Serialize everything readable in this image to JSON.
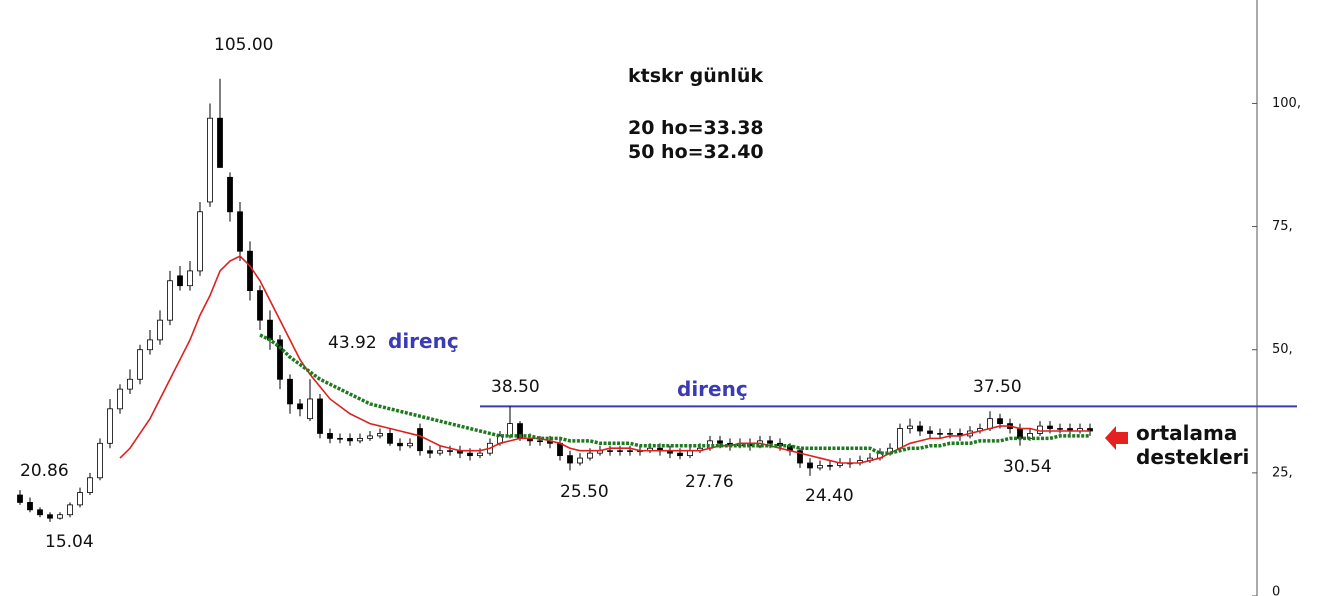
{
  "chart_data": {
    "type": "candlestick",
    "title": "ktskr günlük",
    "notes": [
      "20 ho=33.38",
      "50 ho=32.40"
    ],
    "open": [
      20.5,
      19,
      17.5,
      16.5,
      15.8,
      16.5,
      18.5,
      21,
      24,
      31,
      38,
      42,
      44,
      50,
      52,
      56,
      65,
      63,
      66,
      80,
      97,
      85,
      78,
      70,
      62,
      56,
      52,
      44,
      39,
      36,
      40,
      33,
      32,
      32,
      31.5,
      32,
      32.5,
      33,
      31,
      30.5,
      34,
      29.5,
      29,
      29.5,
      29.5,
      29,
      28.5,
      29,
      31,
      32.5,
      35,
      32,
      31.5,
      31.5,
      31,
      28.5,
      27,
      28,
      29,
      29.5,
      29.5,
      29.5,
      29.5,
      29.5,
      30,
      29.5,
      29,
      28.5,
      29.5,
      30,
      31.5,
      31,
      30.5,
      31,
      30.5,
      31.5,
      31,
      30.5,
      29.5,
      27,
      26,
      26.5,
      26.5,
      27,
      27,
      27.5,
      28,
      29,
      30,
      34,
      34.5,
      33.5,
      33,
      33,
      33,
      32.5,
      33.5,
      34,
      36,
      35,
      34,
      32,
      33,
      34.5,
      34,
      34,
      33.5,
      34
    ],
    "high": [
      21.5,
      20,
      18,
      17,
      17,
      19,
      22,
      25,
      32,
      40,
      43,
      46,
      51,
      54,
      58,
      66,
      67,
      68,
      80,
      100,
      105,
      86,
      80,
      72,
      63,
      58,
      53,
      45,
      40,
      44,
      41,
      34,
      33,
      33,
      33,
      33.5,
      34,
      34,
      32,
      32,
      35,
      30.5,
      30.5,
      30.5,
      30.5,
      30,
      30,
      32,
      33.5,
      38.5,
      35.5,
      33,
      32.5,
      32.5,
      32,
      29.5,
      29,
      30,
      30.5,
      30.5,
      30.5,
      30.5,
      30.5,
      31,
      31,
      30.5,
      30,
      30.5,
      31,
      32.5,
      32.5,
      32,
      32,
      32,
      32.5,
      32.5,
      32,
      31,
      30,
      28,
      27.5,
      27.5,
      28,
      28,
      28.5,
      29,
      30,
      31,
      35,
      36,
      35.5,
      34.5,
      34,
      34,
      34,
      34.5,
      35,
      37.5,
      37,
      36,
      35,
      34,
      35.5,
      35.5,
      35,
      35,
      35,
      35
    ],
    "low": [
      18.5,
      17,
      16,
      15.04,
      15.5,
      16,
      18,
      20.5,
      23.5,
      30,
      37,
      41,
      43,
      49,
      51,
      55,
      62,
      62,
      65,
      79,
      87,
      76,
      68,
      60,
      54,
      50,
      42,
      37,
      36.5,
      35.5,
      32,
      31,
      31,
      30.5,
      31,
      31.5,
      32,
      30.5,
      29.5,
      30,
      28.5,
      28,
      28.5,
      28.5,
      28,
      27.5,
      28,
      28.5,
      30.5,
      32,
      31.5,
      30.5,
      30.5,
      30,
      27.5,
      25.5,
      26.5,
      27.5,
      28.5,
      28.5,
      28.5,
      28.5,
      28.5,
      29,
      28.5,
      28,
      27.76,
      28,
      29,
      29.5,
      30,
      29.5,
      30,
      29.5,
      30,
      30,
      29.5,
      28.5,
      26,
      24.4,
      25.5,
      25.5,
      26,
      26,
      26.5,
      27,
      27.5,
      28.5,
      29.5,
      33,
      32.5,
      32,
      32,
      32,
      31.5,
      32,
      33,
      33.5,
      34,
      33,
      30.54,
      31.5,
      32.5,
      33,
      33,
      32.5,
      33,
      32.5
    ],
    "close": [
      19,
      17.5,
      16.5,
      15.8,
      16.5,
      18.5,
      21,
      24,
      31,
      38,
      42,
      44,
      50,
      52,
      56,
      64,
      63,
      66,
      78,
      97,
      87,
      78,
      70,
      62,
      56,
      52,
      44,
      39,
      38,
      40,
      33,
      32,
      32,
      31.5,
      32,
      32.5,
      33,
      31,
      30.5,
      31,
      29.5,
      29,
      29.5,
      29.5,
      29,
      28.5,
      29,
      31,
      32.5,
      35,
      32,
      31.5,
      31.5,
      31,
      28.5,
      27,
      28,
      29,
      29.5,
      29.5,
      29.5,
      29.5,
      29.5,
      30,
      29.5,
      29,
      28.5,
      29.5,
      30,
      31.5,
      31,
      30.5,
      31,
      30.5,
      31.5,
      31,
      30.5,
      29.5,
      27,
      26,
      26.5,
      26.5,
      27,
      27,
      27.5,
      28,
      29,
      30,
      34,
      34.5,
      33.5,
      33,
      33,
      33,
      32.5,
      33.5,
      34,
      36,
      35,
      34,
      32,
      33,
      34.5,
      34,
      34,
      33.5,
      34,
      33.5
    ],
    "moving_averages": [
      {
        "color": "#e02020",
        "style": "solid",
        "values": [
          null,
          null,
          null,
          null,
          null,
          null,
          null,
          null,
          null,
          null,
          28,
          30,
          33,
          36,
          40,
          44,
          48,
          52,
          57,
          61,
          66,
          68,
          69,
          67,
          64,
          60,
          56,
          52,
          48,
          45,
          42.5,
          40,
          38.5,
          37,
          36,
          35,
          34.5,
          34,
          33.5,
          33,
          32.5,
          31.5,
          30.5,
          30,
          29.5,
          29.5,
          29.5,
          30,
          31,
          31.5,
          32,
          32,
          32,
          31.5,
          31,
          30,
          29.5,
          29.5,
          29.5,
          30,
          30,
          30,
          29.5,
          29.5,
          29.5,
          29.5,
          29.5,
          29.5,
          29.5,
          30,
          30.5,
          30.5,
          31,
          31,
          31,
          30.5,
          30,
          29.5,
          29,
          28.5,
          28,
          27.5,
          27,
          27,
          27,
          27.5,
          28,
          29,
          30,
          31,
          31.5,
          32,
          32,
          32.5,
          32.5,
          33,
          33.5,
          34,
          34.5,
          34.5,
          34,
          34,
          33.5,
          33.5,
          33.5,
          33.5,
          33.5,
          33.5
        ]
      },
      {
        "color": "#1e7a1e",
        "style": "dotted",
        "values": [
          null,
          null,
          null,
          null,
          null,
          null,
          null,
          null,
          null,
          null,
          null,
          null,
          null,
          null,
          null,
          null,
          null,
          null,
          null,
          null,
          null,
          null,
          null,
          null,
          53,
          52,
          50.5,
          48.5,
          47,
          45.5,
          44,
          43,
          42,
          41,
          40,
          39,
          38.5,
          38,
          37.5,
          37,
          36.5,
          36,
          35.5,
          35,
          34.5,
          34,
          33.5,
          33,
          32.5,
          32.5,
          32.5,
          32.5,
          32,
          32,
          32,
          31.5,
          31.5,
          31.5,
          31,
          31,
          31,
          31,
          30.5,
          30.5,
          30.5,
          30.5,
          30.5,
          30.5,
          30.5,
          30.5,
          30.5,
          30.5,
          30.5,
          30.5,
          30.5,
          30.5,
          30.5,
          30.5,
          30,
          30,
          30,
          30,
          30,
          30,
          30,
          30,
          29,
          29,
          29.5,
          30,
          30,
          30.5,
          30.5,
          31,
          31,
          31,
          31.5,
          31.5,
          31.5,
          32,
          32,
          32,
          32,
          32,
          32.5,
          32.5,
          32.5,
          32.5
        ]
      }
    ],
    "resistance": {
      "value": 38.5,
      "color": "#3b3bb5",
      "start": 46
    },
    "annotations": [
      "105.00",
      "43.92",
      "direnç",
      "38.50",
      "direnç",
      "37.50",
      "20.86",
      "15.04",
      "25.50",
      "27.76",
      "24.40",
      "30.54",
      "ortalama",
      "destekleri"
    ],
    "ylim": [
      0,
      121
    ],
    "yticks": [
      {
        "value": 0,
        "label": "0"
      },
      {
        "value": 25,
        "label": "25,"
      },
      {
        "value": 50,
        "label": "50,"
      },
      {
        "value": 75,
        "label": "75,"
      },
      {
        "value": 100,
        "label": "100,"
      }
    ]
  }
}
